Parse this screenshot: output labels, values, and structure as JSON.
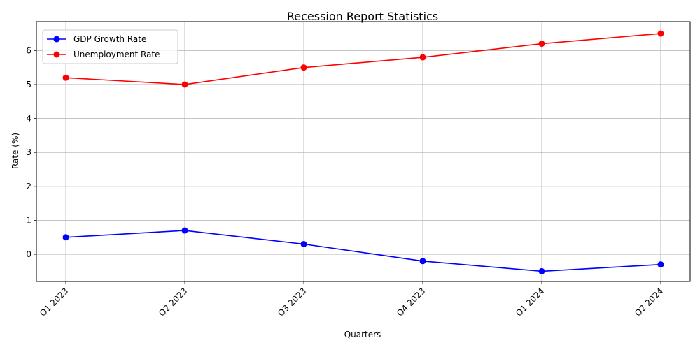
{
  "chart_data": {
    "type": "line",
    "title": "Recession Report Statistics",
    "xlabel": "Quarters",
    "ylabel": "Rate (%)",
    "categories": [
      "Q1 2023",
      "Q2 2023",
      "Q3 2023",
      "Q4 2023",
      "Q1 2024",
      "Q2 2024"
    ],
    "y_ticks": [
      0,
      1,
      2,
      3,
      4,
      5,
      6
    ],
    "ylim": [
      -0.8,
      6.85
    ],
    "grid": true,
    "legend_position": "upper left",
    "series": [
      {
        "name": "GDP Growth Rate",
        "color": "#0000ff",
        "marker": "circle",
        "values": [
          0.5,
          0.7,
          0.3,
          -0.2,
          -0.5,
          -0.3
        ]
      },
      {
        "name": "Unemployment Rate",
        "color": "#ff0000",
        "marker": "circle",
        "values": [
          5.2,
          5.0,
          5.5,
          5.8,
          6.2,
          6.5
        ]
      }
    ]
  }
}
